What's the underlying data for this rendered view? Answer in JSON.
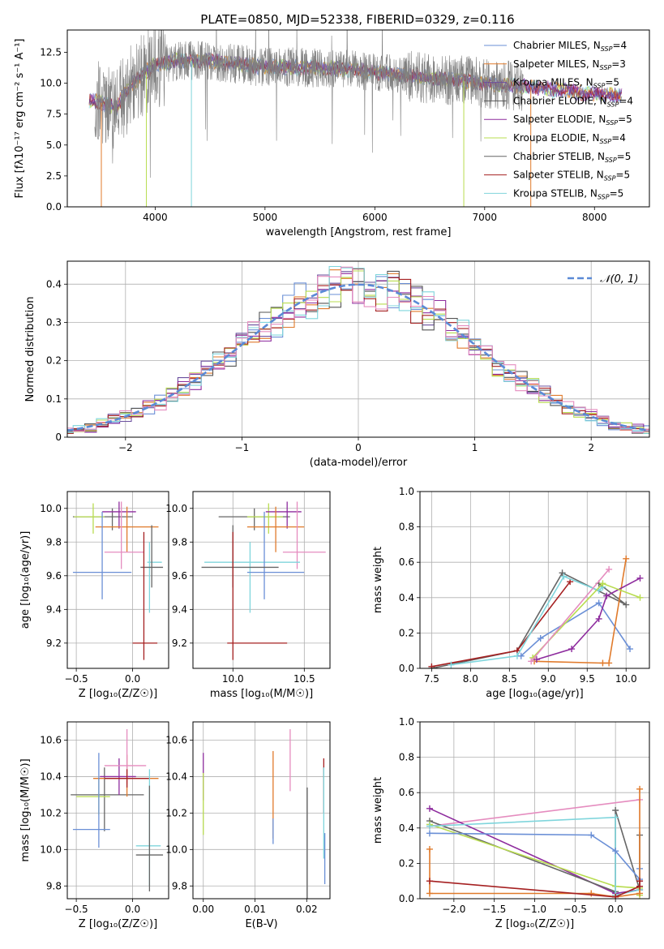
{
  "figure": {
    "title": "PLATE=0850, MJD=52338, FIBERID=0329, z=0.116"
  },
  "colors": {
    "chabrier_miles": "#6a8fd6",
    "salpeter_miles": "#e07a2b",
    "kroupa_miles": "#6b4f9e",
    "chabrier_elodie": "#555555",
    "salpeter_elodie": "#8e2c9e",
    "kroupa_elodie": "#b8dc4f",
    "chabrier_stelib": "#666666",
    "salpeter_stelib": "#a52021",
    "kroupa_stelib": "#7fd5dc",
    "pink": "#e58cbf",
    "normal": "#5b8ad6"
  },
  "chart_data": [
    {
      "id": "spectrum",
      "type": "line",
      "title": "PLATE=0850, MJD=52338, FIBERID=0329, z=0.116",
      "xlabel": "wavelength [Angstrom, rest frame]",
      "ylabel": "Flux [fλ10⁻¹⁷ erg cm⁻² s⁻¹ A⁻¹]",
      "xlim": [
        3200,
        8500
      ],
      "ylim": [
        0,
        14.3
      ],
      "xticks": [
        4000,
        5000,
        6000,
        7000,
        8000
      ],
      "yticks": [
        0.0,
        2.5,
        5.0,
        7.5,
        10.0,
        12.5
      ],
      "grid": false,
      "legend_position": "upper right",
      "legend": [
        {
          "label": "Chabrier MILES, N",
          "sub": "SSP",
          "tail": "=4",
          "color": "chabrier_miles"
        },
        {
          "label": "Salpeter MILES, N",
          "sub": "SSP",
          "tail": "=3",
          "color": "salpeter_miles"
        },
        {
          "label": "Kroupa MILES, N",
          "sub": "SSP",
          "tail": "=5",
          "color": "kroupa_miles"
        },
        {
          "label": "Chabrier ELODIE, N",
          "sub": "SSP",
          "tail": "=4",
          "color": "chabrier_elodie"
        },
        {
          "label": "Salpeter ELODIE, N",
          "sub": "SSP",
          "tail": "=5",
          "color": "salpeter_elodie"
        },
        {
          "label": "Kroupa ELODIE, N",
          "sub": "SSP",
          "tail": "=4",
          "color": "kroupa_elodie"
        },
        {
          "label": "Chabrier STELIB, N",
          "sub": "SSP",
          "tail": "=5",
          "color": "chabrier_stelib"
        },
        {
          "label": "Salpeter STELIB, N",
          "sub": "SSP",
          "tail": "=5",
          "color": "salpeter_stelib"
        },
        {
          "label": "Kroupa STELIB, N",
          "sub": "SSP",
          "tail": "=5",
          "color": "kroupa_stelib"
        }
      ],
      "data_trend": {
        "x": [
          3450,
          3550,
          3650,
          3700,
          3800,
          3900,
          4000,
          4200,
          4500,
          4800,
          5000,
          5300,
          5600,
          5900,
          6200,
          6500,
          6800,
          7000,
          7300,
          7600,
          7900,
          8200
        ],
        "y": [
          8.6,
          8.3,
          8.0,
          8.9,
          10.0,
          10.8,
          11.5,
          11.8,
          11.8,
          11.5,
          11.3,
          11.3,
          11.2,
          11.0,
          10.7,
          10.4,
          10.2,
          10.0,
          9.8,
          9.5,
          9.2,
          9.0
        ]
      },
      "data_noise_amp": 1.6,
      "data_range": [
        3450,
        7350
      ],
      "model_range": [
        3400,
        8250
      ],
      "model_dropouts": [
        {
          "x": 3510,
          "color": "salpeter_miles"
        },
        {
          "x": 3920,
          "color": "kroupa_elodie"
        },
        {
          "x": 4330,
          "color": "kroupa_stelib"
        },
        {
          "x": 6810,
          "color": "kroupa_elodie"
        },
        {
          "x": 7420,
          "color": "salpeter_miles"
        }
      ]
    },
    {
      "id": "residuals",
      "type": "histogram",
      "xlabel": "(data-model)/error",
      "ylabel": "Normed distribution",
      "xlim": [
        -2.5,
        2.5
      ],
      "ylim": [
        0,
        0.46
      ],
      "xticks": [
        -2,
        -1,
        0,
        1,
        2
      ],
      "yticks": [
        0.0,
        0.1,
        0.2,
        0.3,
        0.4
      ],
      "grid": true,
      "legend_position": "upper right",
      "legend": [
        {
          "label": "𝒩(0, 1)",
          "color": "normal",
          "style": "dashed"
        }
      ],
      "bin_width": 0.1,
      "series_colors": [
        "chabrier_miles",
        "salpeter_miles",
        "kroupa_miles",
        "chabrier_elodie",
        "salpeter_elodie",
        "kroupa_elodie",
        "salpeter_stelib",
        "kroupa_stelib",
        "pink"
      ]
    },
    {
      "id": "age_vs_Z",
      "type": "errorbar",
      "xlabel": "Z [log₁₀(Z/Z☉)]",
      "ylabel": "age  [log₁₀(age/yr)]",
      "xlim": [
        -0.58,
        0.32
      ],
      "ylim": [
        9.05,
        10.1
      ],
      "xticks": [
        -0.5,
        0.0
      ],
      "yticks": [
        9.2,
        9.4,
        9.6,
        9.8,
        10.0
      ],
      "grid": true,
      "points": [
        {
          "x": -0.18,
          "xerr": [
            0.35,
            0.18
          ],
          "y": 9.95,
          "yerr": [
            0.08,
            0.05
          ],
          "color": "chabrier_stelib"
        },
        {
          "x": -0.35,
          "xerr": [
            0.17,
            0.1
          ],
          "y": 9.95,
          "yerr": [
            0.1,
            0.08
          ],
          "color": "kroupa_elodie"
        },
        {
          "x": -0.12,
          "xerr": [
            0.15,
            0.15
          ],
          "y": 9.98,
          "yerr": [
            0.1,
            0.06
          ],
          "color": "salpeter_elodie"
        },
        {
          "x": -0.05,
          "xerr": [
            0.28,
            0.28
          ],
          "y": 9.89,
          "yerr": [
            0.15,
            0.12
          ],
          "color": "salpeter_miles"
        },
        {
          "x": -0.1,
          "xerr": [
            0.15,
            0.2
          ],
          "y": 9.74,
          "yerr": [
            0.1,
            0.3
          ],
          "color": "pink"
        },
        {
          "x": -0.27,
          "xerr": [
            0.26,
            0.26
          ],
          "y": 9.62,
          "yerr": [
            0.16,
            0.36
          ],
          "color": "chabrier_miles"
        },
        {
          "x": 0.15,
          "xerr": [
            0.02,
            0.11
          ],
          "y": 9.68,
          "yerr": [
            0.3,
            0.12
          ],
          "color": "kroupa_stelib"
        },
        {
          "x": 0.17,
          "xerr": [
            0.1,
            0.1
          ],
          "y": 9.65,
          "yerr": [
            0.12,
            0.25
          ],
          "color": "chabrier_stelib"
        },
        {
          "x": 0.1,
          "xerr": [
            0.1,
            0.12
          ],
          "y": 9.2,
          "yerr": [
            0.1,
            0.66
          ],
          "color": "salpeter_stelib"
        }
      ]
    },
    {
      "id": "age_vs_mass",
      "type": "errorbar",
      "xlabel": "mass [log₁₀(M/M☉)]",
      "ylabel": "",
      "xlim": [
        9.72,
        10.68
      ],
      "ylim": [
        9.05,
        10.1
      ],
      "xticks": [
        10.0,
        10.5
      ],
      "yticks": [
        9.2,
        9.4,
        9.6,
        9.8,
        10.0
      ],
      "grid": true,
      "points": [
        {
          "x": 10.15,
          "xerr": [
            0.25,
            0.25
          ],
          "y": 9.95,
          "yerr": [
            0.08,
            0.05
          ],
          "color": "chabrier_stelib"
        },
        {
          "x": 10.25,
          "xerr": [
            0.15,
            0.1
          ],
          "y": 9.95,
          "yerr": [
            0.1,
            0.08
          ],
          "color": "kroupa_elodie"
        },
        {
          "x": 10.38,
          "xerr": [
            0.15,
            0.1
          ],
          "y": 9.98,
          "yerr": [
            0.1,
            0.06
          ],
          "color": "salpeter_elodie"
        },
        {
          "x": 10.3,
          "xerr": [
            0.2,
            0.2
          ],
          "y": 9.89,
          "yerr": [
            0.15,
            0.12
          ],
          "color": "salpeter_miles"
        },
        {
          "x": 10.45,
          "xerr": [
            0.1,
            0.2
          ],
          "y": 9.74,
          "yerr": [
            0.1,
            0.3
          ],
          "color": "pink"
        },
        {
          "x": 10.12,
          "xerr": [
            0.32,
            0.35
          ],
          "y": 9.68,
          "yerr": [
            0.3,
            0.12
          ],
          "color": "kroupa_stelib"
        },
        {
          "x": 10.22,
          "xerr": [
            0.12,
            0.28
          ],
          "y": 9.62,
          "yerr": [
            0.16,
            0.36
          ],
          "color": "chabrier_miles"
        },
        {
          "x": 10.0,
          "xerr": [
            0.22,
            0.32
          ],
          "y": 9.65,
          "yerr": [
            0.12,
            0.25
          ],
          "color": "chabrier_stelib"
        },
        {
          "x": 10.0,
          "xerr": [
            0.04,
            0.38
          ],
          "y": 9.2,
          "yerr": [
            0.1,
            0.66
          ],
          "color": "salpeter_stelib"
        }
      ]
    },
    {
      "id": "weight_vs_age",
      "type": "line",
      "xlabel": "age  [log₁₀(age/yr)]",
      "ylabel": "mass weight",
      "xlim": [
        7.35,
        10.3
      ],
      "ylim": [
        0,
        1.0
      ],
      "xticks": [
        7.5,
        8.0,
        8.5,
        9.0,
        9.5,
        10.0
      ],
      "yticks": [
        0.0,
        0.2,
        0.4,
        0.6,
        0.8,
        1.0
      ],
      "grid": true,
      "series": [
        {
          "color": "chabrier_stelib",
          "x": [
            7.5,
            8.6,
            9.18,
            10.0,
            9.65
          ],
          "y": [
            0.0,
            0.1,
            0.54,
            0.36,
            0.48
          ]
        },
        {
          "color": "salpeter_stelib",
          "x": [
            7.5,
            8.6,
            9.28
          ],
          "y": [
            0.01,
            0.1,
            0.49
          ]
        },
        {
          "color": "kroupa_stelib",
          "x": [
            7.75,
            8.6,
            9.2,
            9.65,
            9.7
          ],
          "y": [
            0.02,
            0.07,
            0.52,
            0.44,
            0.46
          ]
        },
        {
          "color": "chabrier_miles",
          "x": [
            8.65,
            8.9,
            9.65,
            10.05
          ],
          "y": [
            0.07,
            0.17,
            0.37,
            0.11
          ]
        },
        {
          "color": "salpeter_miles",
          "x": [
            8.82,
            9.7,
            9.78,
            10.0
          ],
          "y": [
            0.04,
            0.03,
            0.03,
            0.62
          ]
        },
        {
          "color": "salpeter_elodie",
          "x": [
            8.85,
            9.3,
            9.65,
            9.75,
            10.18
          ],
          "y": [
            0.05,
            0.11,
            0.28,
            0.41,
            0.51
          ]
        },
        {
          "color": "kroupa_elodie",
          "x": [
            8.8,
            9.7,
            10.18
          ],
          "y": [
            0.06,
            0.48,
            0.4
          ]
        },
        {
          "color": "pink",
          "x": [
            8.78,
            9.78
          ],
          "y": [
            0.04,
            0.56
          ]
        }
      ]
    },
    {
      "id": "mass_vs_Z",
      "type": "errorbar",
      "xlabel": "Z [log₁₀(Z/Z☉)]",
      "ylabel": "mass [log₁₀(M/M☉)]",
      "xlim": [
        -0.58,
        0.32
      ],
      "ylim": [
        9.73,
        10.7
      ],
      "xticks": [
        -0.5,
        0.0
      ],
      "yticks": [
        9.8,
        10.0,
        10.2,
        10.4,
        10.6
      ],
      "grid": true,
      "points": [
        {
          "x": -0.25,
          "xerr": [
            0.3,
            0.35
          ],
          "y": 10.3,
          "yerr": [
            0.2,
            0.15
          ],
          "color": "chabrier_stelib"
        },
        {
          "x": -0.3,
          "xerr": [
            0.2,
            0.1
          ],
          "y": 10.29,
          "yerr": [
            0.1,
            0.1
          ],
          "color": "kroupa_elodie"
        },
        {
          "x": -0.12,
          "xerr": [
            0.17,
            0.15
          ],
          "y": 10.4,
          "yerr": [
            0.1,
            0.1
          ],
          "color": "salpeter_elodie"
        },
        {
          "x": -0.05,
          "xerr": [
            0.3,
            0.28
          ],
          "y": 10.39,
          "yerr": [
            0.1,
            0.13
          ],
          "color": "salpeter_miles"
        },
        {
          "x": -0.05,
          "xerr": [
            0.2,
            0.17
          ],
          "y": 10.46,
          "yerr": [
            0.1,
            0.2
          ],
          "color": "pink"
        },
        {
          "x": -0.05,
          "xerr": [
            0.2,
            0.2
          ],
          "y": 10.39,
          "yerr": [
            0.05,
            0.05
          ],
          "color": "salpeter_stelib"
        },
        {
          "x": -0.3,
          "xerr": [
            0.23,
            0.1
          ],
          "y": 10.11,
          "yerr": [
            0.1,
            0.42
          ],
          "color": "chabrier_miles"
        },
        {
          "x": 0.15,
          "xerr": [
            0.12,
            0.1
          ],
          "y": 10.02,
          "yerr": [
            0.22,
            0.42
          ],
          "color": "kroupa_stelib"
        },
        {
          "x": 0.15,
          "xerr": [
            0.12,
            0.12
          ],
          "y": 9.97,
          "yerr": [
            0.2,
            0.38
          ],
          "color": "chabrier_stelib"
        }
      ]
    },
    {
      "id": "mass_vs_EBV",
      "type": "errorbar",
      "xlabel": "E(B-V)",
      "ylabel": "",
      "xlim": [
        -0.002,
        0.0245
      ],
      "ylim": [
        9.73,
        10.7
      ],
      "xticks": [
        0.0,
        0.01,
        0.02
      ],
      "yticks": [
        9.8,
        10.0,
        10.2,
        10.4,
        10.6
      ],
      "grid": true,
      "points": [
        {
          "x": 0.0,
          "xerr": [
            0,
            0
          ],
          "y": 10.4,
          "yerr": [
            0.13,
            0.13
          ],
          "color": "salpeter_elodie"
        },
        {
          "x": 0.0,
          "xerr": [
            0,
            0
          ],
          "y": 10.25,
          "yerr": [
            0.17,
            0.17
          ],
          "color": "kroupa_elodie"
        },
        {
          "x": 0.0135,
          "xerr": [
            0,
            0
          ],
          "y": 10.3,
          "yerr": [
            0.24,
            0.24
          ],
          "color": "salpeter_miles"
        },
        {
          "x": 0.0135,
          "xerr": [
            0,
            0
          ],
          "y": 10.1,
          "yerr": [
            0.07,
            0.07
          ],
          "color": "chabrier_miles"
        },
        {
          "x": 0.0168,
          "xerr": [
            0,
            0
          ],
          "y": 10.49,
          "yerr": [
            0.17,
            0.17
          ],
          "color": "pink"
        },
        {
          "x": 0.0201,
          "xerr": [
            0,
            0
          ],
          "y": 10.0,
          "yerr": [
            0.34,
            0.34
          ],
          "color": "chabrier_stelib"
        },
        {
          "x": 0.0233,
          "xerr": [
            0,
            0
          ],
          "y": 10.35,
          "yerr": [
            0.15,
            0.15
          ],
          "color": "salpeter_stelib"
        },
        {
          "x": 0.0233,
          "xerr": [
            0,
            0
          ],
          "y": 10.2,
          "yerr": [
            0.25,
            0.25
          ],
          "color": "kroupa_stelib"
        },
        {
          "x": 0.0235,
          "xerr": [
            0,
            0
          ],
          "y": 9.95,
          "yerr": [
            0.14,
            0.14
          ],
          "color": "chabrier_miles"
        }
      ]
    },
    {
      "id": "weight_vs_Z",
      "type": "line",
      "xlabel": "Z [log₁₀(Z/Z☉)]",
      "ylabel": "mass weight",
      "xlim": [
        -2.42,
        0.42
      ],
      "ylim": [
        0,
        1.0
      ],
      "xticks": [
        -2.0,
        -1.5,
        -1.0,
        -0.5,
        0.0
      ],
      "yticks": [
        0.0,
        0.2,
        0.4,
        0.6,
        0.8,
        1.0
      ],
      "grid": true,
      "series": [
        {
          "color": "pink",
          "x": [
            -2.3,
            0.3
          ],
          "y": [
            0.41,
            0.56
          ]
        },
        {
          "color": "salpeter_elodie",
          "x": [
            -2.3,
            0.0,
            0.3,
            0.3
          ],
          "y": [
            0.51,
            0.03,
            0.05,
            0.1
          ]
        },
        {
          "color": "chabrier_stelib",
          "x": [
            -2.3,
            0.0,
            0.0,
            0.3,
            0.3
          ],
          "y": [
            0.44,
            0.04,
            0.5,
            0.05,
            0.36
          ]
        },
        {
          "color": "kroupa_elodie",
          "x": [
            -2.3,
            0.0,
            0.3,
            0.3
          ],
          "y": [
            0.42,
            0.07,
            0.06,
            0.02
          ]
        },
        {
          "color": "kroupa_stelib",
          "x": [
            -2.3,
            0.0,
            0.0,
            0.3
          ],
          "y": [
            0.41,
            0.46,
            0.02,
            0.05
          ]
        },
        {
          "color": "chabrier_miles",
          "x": [
            -2.3,
            -0.3,
            0.0,
            0.3,
            0.3
          ],
          "y": [
            0.37,
            0.36,
            0.27,
            0.11,
            0.17
          ]
        },
        {
          "color": "salpeter_miles",
          "x": [
            -2.3,
            -2.3,
            -0.3,
            0.0,
            0.3,
            0.3
          ],
          "y": [
            0.28,
            0.03,
            0.03,
            0.01,
            0.03,
            0.62
          ]
        },
        {
          "color": "salpeter_stelib",
          "x": [
            -2.3,
            0.0,
            0.3,
            0.3
          ],
          "y": [
            0.1,
            0.01,
            0.07,
            0.1
          ]
        }
      ]
    }
  ]
}
